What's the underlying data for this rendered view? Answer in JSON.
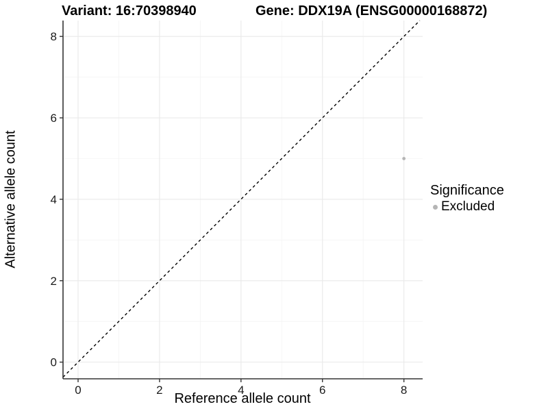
{
  "chart_data": {
    "type": "scatter",
    "titles": {
      "left": "Variant: 16:70398940",
      "right": "Gene: DDX19A (ENSG00000168872)"
    },
    "xlabel": "Reference allele count",
    "ylabel": "Alternative allele count",
    "x_ticks": [
      0,
      2,
      4,
      6,
      8
    ],
    "y_ticks": [
      0,
      2,
      4,
      6,
      8
    ],
    "x_minor_ticks": [
      1,
      3,
      5,
      7
    ],
    "y_minor_ticks": [
      1,
      3,
      5,
      7
    ],
    "xlim": [
      -0.37,
      8.46
    ],
    "ylim": [
      -0.41,
      8.39
    ],
    "grid": "on",
    "reference_line": {
      "type": "diagonal y=x",
      "style": "dashed",
      "color": "#000000"
    },
    "points": [
      {
        "x": 8,
        "y": 5,
        "series": "Excluded"
      }
    ],
    "legend": {
      "title": "Significance",
      "position": "right",
      "entries": [
        {
          "label": "Excluded",
          "color": "#b5b5b5"
        }
      ]
    },
    "colors": {
      "background": "#ffffff",
      "panel_background": "#ffffff",
      "grid_major": "#e9e9e9",
      "grid_minor": "#f4f4f4",
      "axis_line": "#333333",
      "tick_mark": "#333333",
      "tick_text": "#1a1a1a",
      "title_text": "#000000",
      "point": "#b5b5b5"
    }
  }
}
